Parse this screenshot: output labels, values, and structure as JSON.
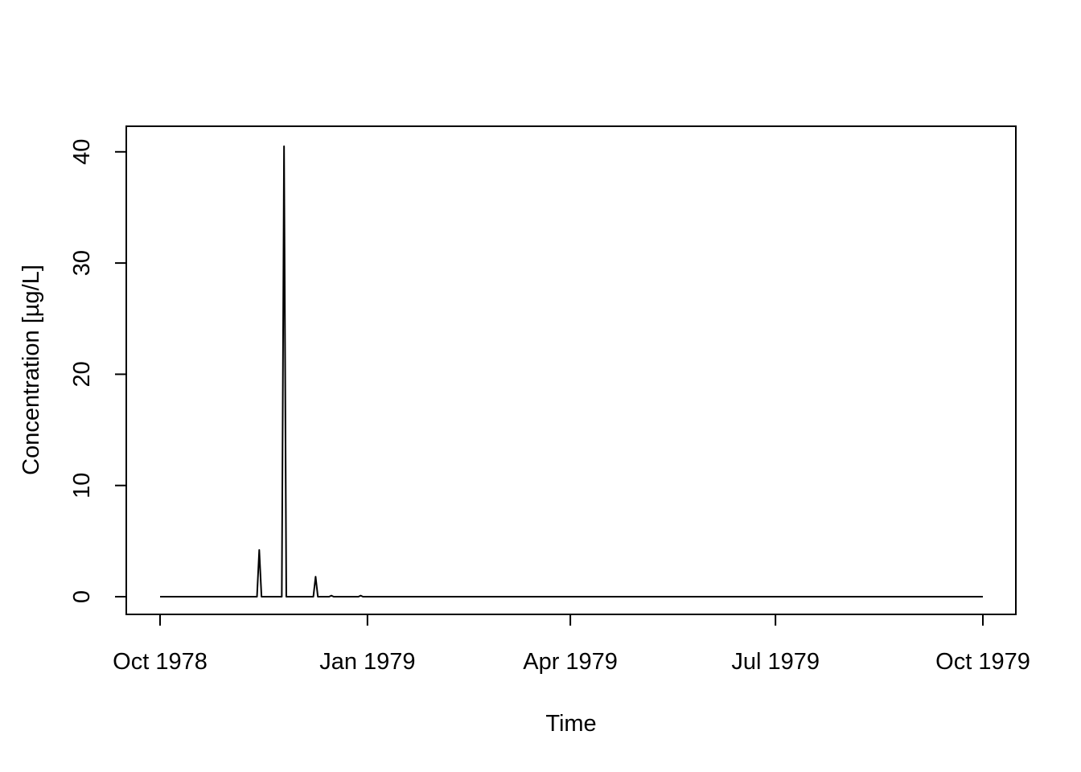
{
  "chart_data": {
    "type": "line",
    "title": "",
    "xlabel": "Time",
    "ylabel": "Concentration [µg/L]",
    "x_type": "date",
    "xlim": [
      "1978-10-01",
      "1979-10-01"
    ],
    "ylim": [
      0,
      40.5
    ],
    "x_ticks": [
      {
        "date": "1978-10-01",
        "label": "Oct 1978"
      },
      {
        "date": "1979-01-01",
        "label": "Jan 1979"
      },
      {
        "date": "1979-04-01",
        "label": "Apr 1979"
      },
      {
        "date": "1979-07-01",
        "label": "Jul 1979"
      },
      {
        "date": "1979-10-01",
        "label": "Oct 1979"
      }
    ],
    "y_ticks": [
      0,
      10,
      20,
      30,
      40
    ],
    "grid": false,
    "legend": "none",
    "series": [
      {
        "color": "#000000",
        "points": [
          {
            "x": "1978-10-01",
            "y": 0
          },
          {
            "x": "1978-11-13",
            "y": 0
          },
          {
            "x": "1978-11-14",
            "y": 4.2
          },
          {
            "x": "1978-11-15",
            "y": 0
          },
          {
            "x": "1978-11-24",
            "y": 0
          },
          {
            "x": "1978-11-25",
            "y": 40.5
          },
          {
            "x": "1978-11-26",
            "y": 0
          },
          {
            "x": "1978-12-08",
            "y": 0
          },
          {
            "x": "1978-12-09",
            "y": 1.8
          },
          {
            "x": "1978-12-10",
            "y": 0
          },
          {
            "x": "1978-12-15",
            "y": 0
          },
          {
            "x": "1978-12-16",
            "y": 0.1
          },
          {
            "x": "1978-12-17",
            "y": 0
          },
          {
            "x": "1978-12-28",
            "y": 0
          },
          {
            "x": "1978-12-29",
            "y": 0.1
          },
          {
            "x": "1978-12-30",
            "y": 0
          },
          {
            "x": "1979-10-01",
            "y": 0
          }
        ]
      }
    ]
  }
}
